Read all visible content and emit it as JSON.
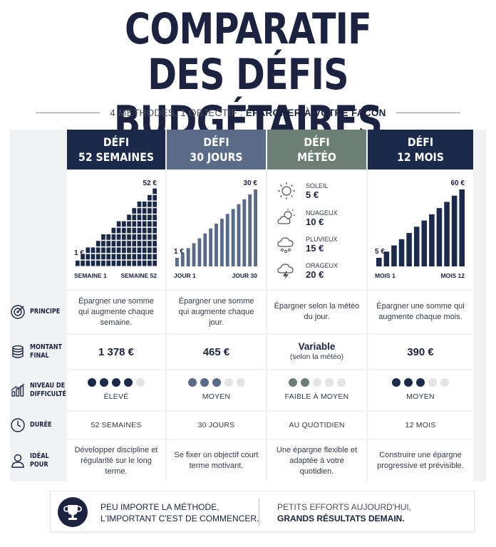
{
  "title": {
    "line1": "COMPARATIF",
    "line2": "DES DÉFIS BUDGÉTAIRES"
  },
  "subtitle": {
    "prefix": "4 MÉTHODES, 1 OBJECTIF : ",
    "bold": "ÉPARGNER À VOTRE FAÇON"
  },
  "columns": [
    {
      "line1": "DÉFI",
      "line2": "52 SEMAINES",
      "color": "#1b2a4a"
    },
    {
      "line1": "DÉFI",
      "line2": "30 JOURS",
      "color": "#5a6b87"
    },
    {
      "line1": "DÉFI",
      "line2": "MÉTÉO",
      "color": "#6d7f74"
    },
    {
      "line1": "DÉFI",
      "line2": "12 MOIS",
      "color": "#1b2a4a"
    }
  ],
  "charts": {
    "semaines": {
      "start_label": "1 €",
      "end_label": "52 €",
      "x_start": "SEMAINE 1",
      "x_end": "SEMAINE 52",
      "steps": 16
    },
    "jours": {
      "start_label": "1 €",
      "end_label": "30 €",
      "x_start": "JOUR 1",
      "x_end": "JOUR 30",
      "steps": 15
    },
    "mois": {
      "start_label": "5 €",
      "end_label": "60 €",
      "x_start": "MOIS 1",
      "x_end": "MOIS 12",
      "steps": 12
    }
  },
  "meteo": [
    {
      "name": "SOLEIL",
      "value": "5 €",
      "icon": "sun-icon"
    },
    {
      "name": "NUAGEUX",
      "value": "10 €",
      "icon": "partly-cloudy-icon"
    },
    {
      "name": "PLUVIEUX",
      "value": "15 €",
      "icon": "rain-icon"
    },
    {
      "name": "ORAGEUX",
      "value": "20 €",
      "icon": "storm-icon"
    }
  ],
  "rows": {
    "principe": {
      "label1": "PRINCIPE",
      "label2": "",
      "values": [
        "Épargner une somme qui augmente chaque semaine.",
        "Épargner une somme qui augmente chaque jour.",
        "Épargner selon la météo du jour.",
        "Épargner une somme qui augmente chaque mois."
      ]
    },
    "montant": {
      "label1": "MONTANT",
      "label2": "FINAL",
      "values": [
        "1 378 €",
        "465 €",
        "Variable",
        "390 €"
      ],
      "note_meteo": "(selon la météo)"
    },
    "difficulte": {
      "label1": "NIVEAU DE",
      "label2": "DIFFICULTÉ",
      "values": [
        "ÉLEVÉ",
        "MOYEN",
        "FAIBLE À MOYEN",
        "MOYEN"
      ],
      "levels": [
        4,
        3,
        2,
        3
      ],
      "dot_colors": [
        "#1b2a4a",
        "#5a6b87",
        "#6d7f74",
        "#1b2a4a"
      ]
    },
    "duree": {
      "label1": "DURÉE",
      "label2": "",
      "values": [
        "52 SEMAINES",
        "30 JOURS",
        "AU QUOTIDIEN",
        "12 MOIS"
      ]
    },
    "ideal": {
      "label1": "IDÉAL POUR",
      "label2": "",
      "values": [
        "Développer discipline et régularité sur le long terme.",
        "Se fixer un objectif court terme motivant.",
        "Une épargne flexible et adaptée à votre quotidien.",
        "Construire une épargne progressive et prévisible."
      ]
    }
  },
  "footer": {
    "left1": "PEU IMPORTE LA MÉTHODE,",
    "left2": "L'IMPORTANT C'EST DE COMMENCER.",
    "right1": "PETITS EFFORTS AUJOURD'HUI,",
    "right2": "GRANDS RÉSULTATS DEMAIN."
  }
}
